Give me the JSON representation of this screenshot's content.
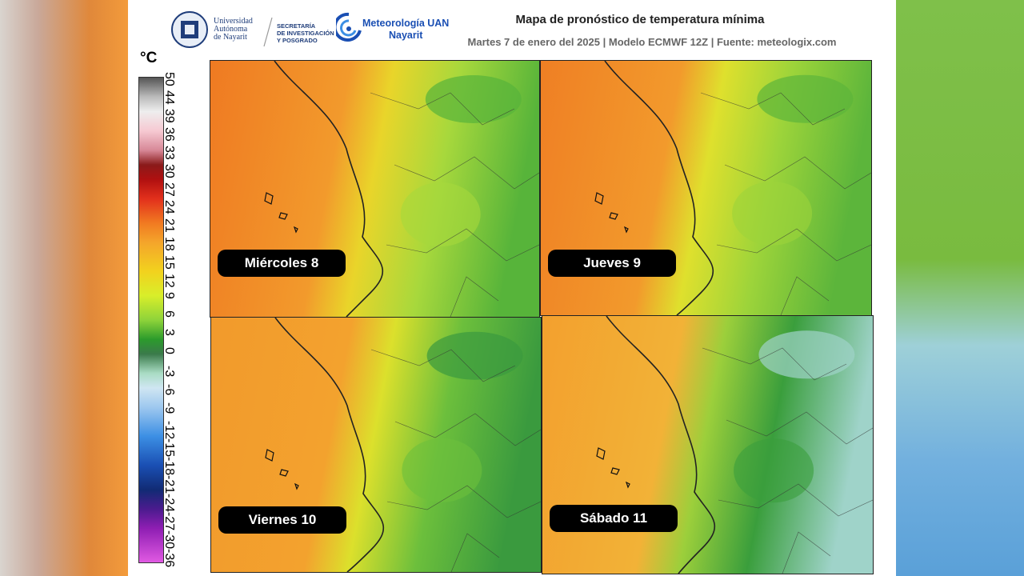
{
  "header": {
    "logos": [
      {
        "lines": [
          "Universidad",
          "Autónoma",
          "de Nayarit"
        ]
      },
      {
        "lines": [
          "SECRETARÍA",
          "DE INVESTIGACIÓN",
          "Y POSGRADO"
        ]
      },
      {
        "lines": [
          "Meteorología UAN",
          "Nayarit"
        ]
      }
    ],
    "title": "Mapa de pronóstico de temperatura mínima",
    "subtitle": "Martes 7 de enero del 2025 | Modelo ECMWF 12Z | Fuente: meteologix.com"
  },
  "legend": {
    "unit": "°C",
    "ticks": [
      "50",
      "44",
      "39",
      "36",
      "33",
      "30",
      "27",
      "24",
      "21",
      "18",
      "15",
      "12",
      "9",
      "6",
      "3",
      "0",
      "-3",
      "-6",
      "-9",
      "-12",
      "-15",
      "-18",
      "-21",
      "-24",
      "-27",
      "-30",
      "-36"
    ]
  },
  "panels": [
    {
      "label": "Miércoles 8"
    },
    {
      "label": "Jueves 9"
    },
    {
      "label": "Viernes 10"
    },
    {
      "label": "Sábado 11"
    }
  ]
}
